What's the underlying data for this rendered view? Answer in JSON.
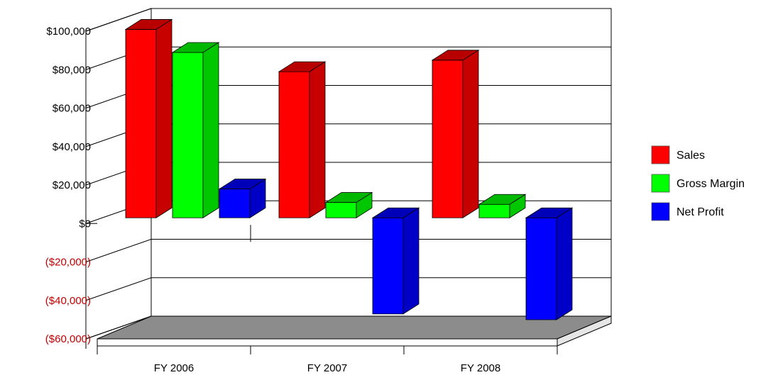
{
  "chart_data": {
    "type": "bar",
    "style": "3d-clustered-column",
    "categories": [
      "FY 2006",
      "FY 2007",
      "FY 2008"
    ],
    "series": [
      {
        "name": "Sales",
        "color": "#ff0000",
        "values": [
          98000,
          76000,
          82000
        ]
      },
      {
        "name": "Gross Margin",
        "color": "#00ff00",
        "values": [
          86000,
          8000,
          7000
        ]
      },
      {
        "name": "Net Profit",
        "color": "#0000ff",
        "values": [
          15000,
          -50000,
          -53000
        ]
      }
    ],
    "ylim": [
      -60000,
      100000
    ],
    "y_ticks": [
      {
        "value": 100000,
        "label": "$100,000"
      },
      {
        "value": 80000,
        "label": "$80,000"
      },
      {
        "value": 60000,
        "label": "$60,000"
      },
      {
        "value": 40000,
        "label": "$40,000"
      },
      {
        "value": 20000,
        "label": "$20,000"
      },
      {
        "value": 0,
        "label": "$0"
      },
      {
        "value": -20000,
        "label": "($20,000)"
      },
      {
        "value": -40000,
        "label": "($40,000)"
      },
      {
        "value": -60000,
        "label": "($60,000)"
      }
    ],
    "negative_label_color": "#c00000",
    "positive_label_color": "#000000",
    "floor_color": "#8c8c8c",
    "grid": true,
    "legend_position": "right",
    "title": "",
    "xlabel": "",
    "ylabel": ""
  }
}
